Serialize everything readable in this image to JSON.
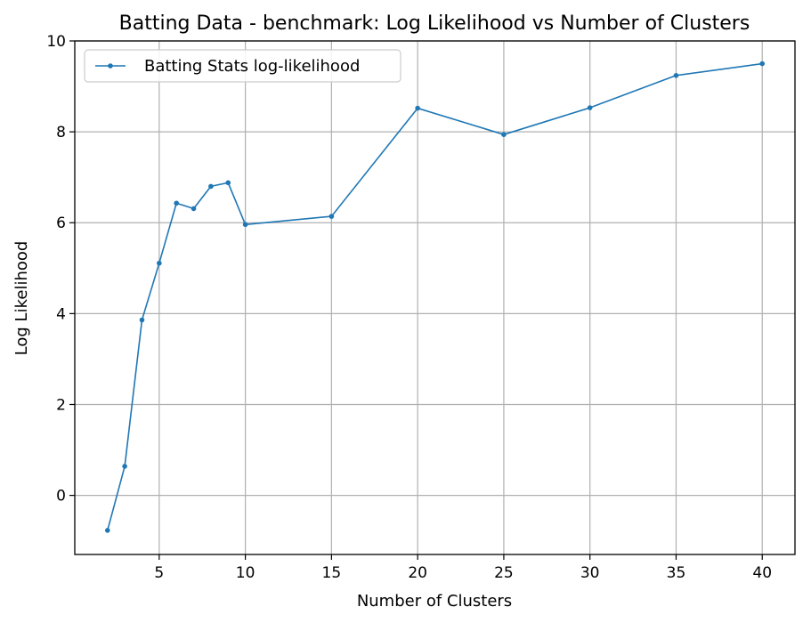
{
  "chart_data": {
    "type": "line",
    "title": "Batting Data - benchmark: Log Likelihood vs Number of Clusters",
    "xlabel": "Number of Clusters",
    "ylabel": "Log Likelihood",
    "xlim": [
      0.1,
      41.9
    ],
    "ylim": [
      -1.3,
      10
    ],
    "xticks": [
      5,
      10,
      15,
      20,
      25,
      30,
      35,
      40
    ],
    "yticks": [
      0,
      2,
      4,
      6,
      8,
      10
    ],
    "grid": true,
    "legend_position": "top-left",
    "series": [
      {
        "name": "Batting Stats log-likelihood",
        "color": "#1f77b4",
        "x": [
          2,
          3,
          4,
          5,
          6,
          7,
          8,
          9,
          10,
          15,
          20,
          25,
          30,
          35,
          40
        ],
        "y": [
          -0.77,
          0.64,
          3.86,
          5.11,
          6.43,
          6.31,
          6.8,
          6.88,
          5.96,
          6.14,
          8.52,
          7.94,
          8.53,
          9.24,
          9.5
        ]
      }
    ]
  }
}
